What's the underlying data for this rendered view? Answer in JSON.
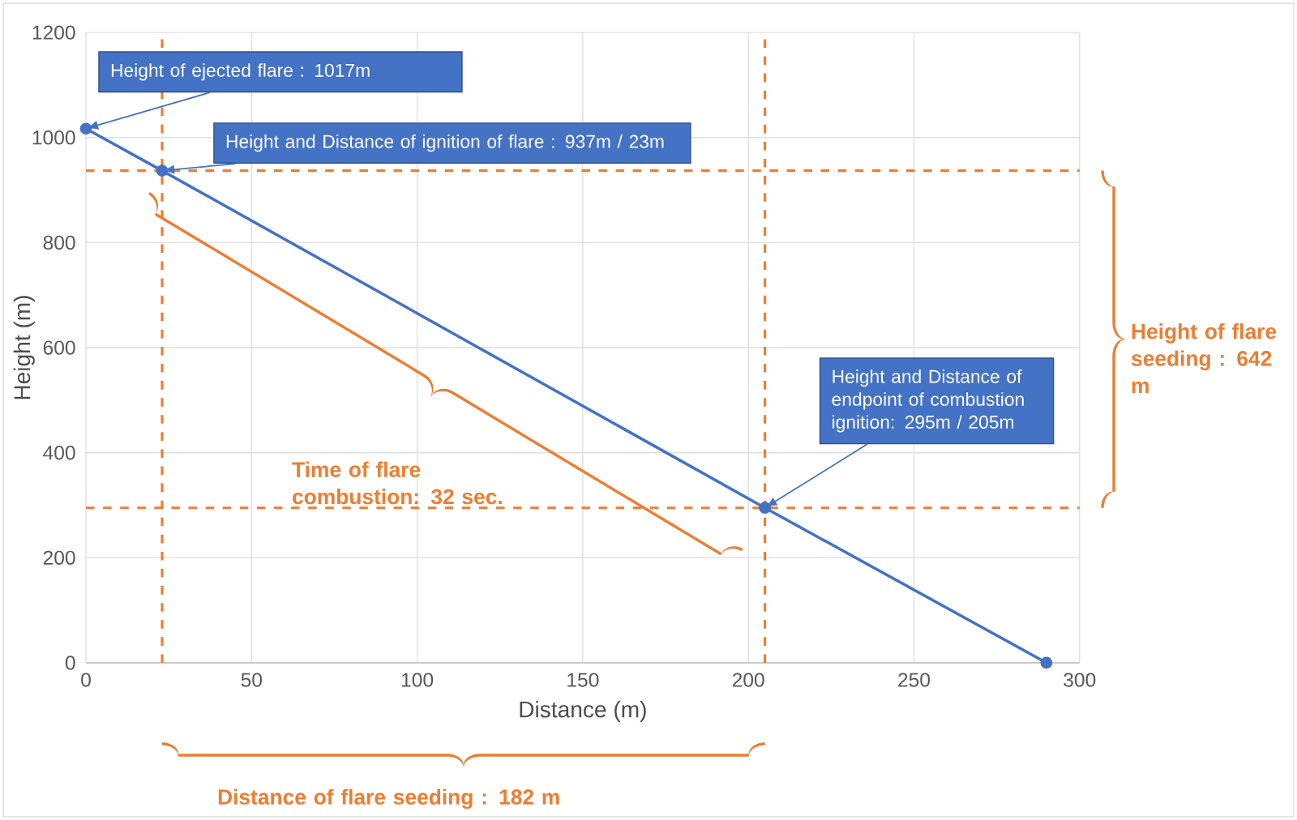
{
  "chart_data": {
    "type": "line",
    "xlabel": "Distance (m)",
    "ylabel": "Height (m)",
    "x": [
      0,
      23,
      205,
      290
    ],
    "series": [
      {
        "color": "#4472c4",
        "values": [
          1017,
          937,
          295,
          0
        ]
      }
    ],
    "marker": "circle",
    "line_style": "solid",
    "grid": true,
    "xlim": [
      0,
      300
    ],
    "ylim": [
      0,
      1200
    ],
    "xticks": [
      0,
      50,
      100,
      150,
      200,
      250,
      300
    ],
    "yticks": [
      0,
      200,
      400,
      600,
      800,
      1000,
      1200
    ],
    "ref_lines": [
      {
        "axis": "y",
        "value": 937,
        "color": "#ed7d31",
        "line_style": "dashed"
      },
      {
        "axis": "y",
        "value": 295,
        "color": "#ed7d31",
        "line_style": "dashed"
      },
      {
        "axis": "x",
        "value": 23,
        "color": "#ed7d31",
        "line_style": "dashed"
      },
      {
        "axis": "x",
        "value": 205,
        "color": "#ed7d31",
        "line_style": "dashed"
      }
    ],
    "annotations": [
      {
        "text": "Height  of ejected flare : 1017m",
        "x": 0,
        "y": 1017
      },
      {
        "text": "Height  and Distance of ignition  of flare : 937m / 23m",
        "x": 23,
        "y": 937
      },
      {
        "text": "Height and Distance of endpoint of combustion ignition:  295m / 205m",
        "x": 205,
        "y": 295
      },
      "Time of flare combustion: 32 sec.",
      "Height of flare seeding  : 642 m",
      "Distance of flare seeding : 182 m"
    ]
  }
}
